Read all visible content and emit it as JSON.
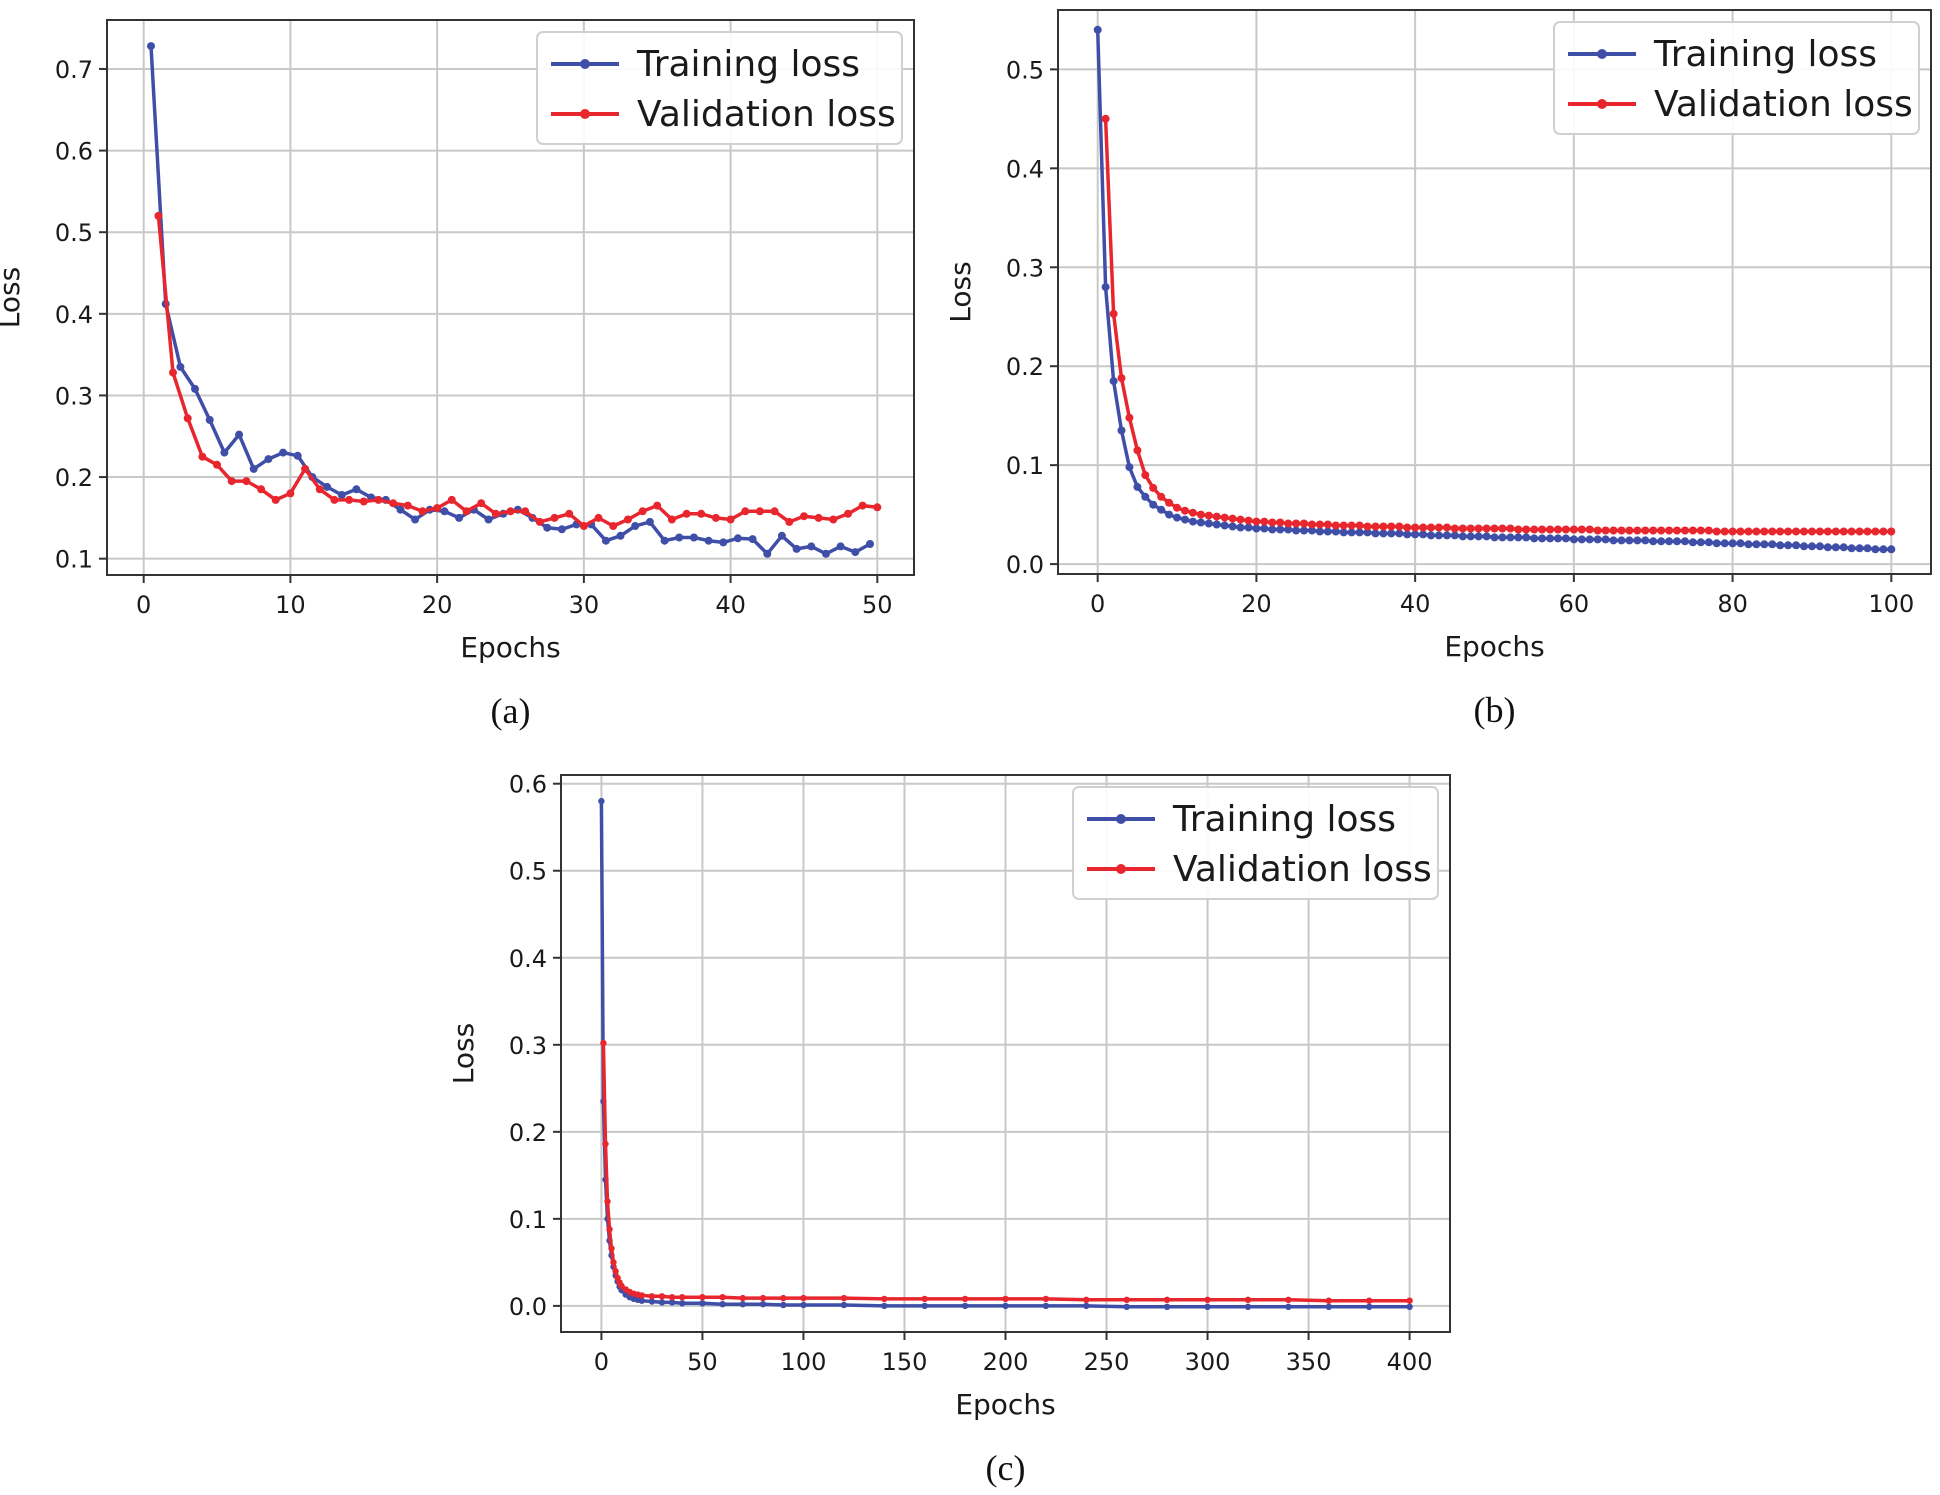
{
  "chart_data": [
    {
      "type": "line",
      "panel": "(a)",
      "xlabel": "Epochs",
      "ylabel": "Loss",
      "xlim": [
        -2.5,
        52.5
      ],
      "ylim": [
        0.08,
        0.76
      ],
      "xticks": [
        0,
        10,
        20,
        30,
        40,
        50
      ],
      "yticks": [
        0.1,
        0.2,
        0.3,
        0.4,
        0.5,
        0.6,
        0.7
      ],
      "legend_position": "top-right",
      "grid": true,
      "series": [
        {
          "name": "Training loss",
          "color": "#3f4fa8",
          "x": [
            0.5,
            1.5,
            2.5,
            3.5,
            4.5,
            5.5,
            6.5,
            7.5,
            8.5,
            9.5,
            10.5,
            11.5,
            12.5,
            13.5,
            14.5,
            15.5,
            16.5,
            17.5,
            18.5,
            19.5,
            20.5,
            21.5,
            22.5,
            23.5,
            24.5,
            25.5,
            26.5,
            27.5,
            28.5,
            29.5,
            30.5,
            31.5,
            32.5,
            33.5,
            34.5,
            35.5,
            36.5,
            37.5,
            38.5,
            39.5,
            40.5,
            41.5,
            42.5,
            43.5,
            44.5,
            45.5,
            46.5,
            47.5,
            48.5,
            49.5
          ],
          "y": [
            0.728,
            0.412,
            0.335,
            0.308,
            0.27,
            0.23,
            0.252,
            0.21,
            0.222,
            0.23,
            0.226,
            0.2,
            0.188,
            0.178,
            0.185,
            0.175,
            0.172,
            0.16,
            0.148,
            0.16,
            0.158,
            0.15,
            0.16,
            0.148,
            0.155,
            0.16,
            0.15,
            0.138,
            0.136,
            0.142,
            0.142,
            0.122,
            0.128,
            0.14,
            0.145,
            0.122,
            0.126,
            0.126,
            0.122,
            0.12,
            0.125,
            0.124,
            0.106,
            0.128,
            0.112,
            0.115,
            0.106,
            0.115,
            0.108,
            0.118
          ]
        },
        {
          "name": "Validation loss",
          "color": "#e8262e",
          "x": [
            1.0,
            2.0,
            3.0,
            4.0,
            5.0,
            6.0,
            7.0,
            8.0,
            9.0,
            10.0,
            11.0,
            12.0,
            13.0,
            14.0,
            15.0,
            16.0,
            17.0,
            18.0,
            19.0,
            20.0,
            21.0,
            22.0,
            23.0,
            24.0,
            25.0,
            26.0,
            27.0,
            28.0,
            29.0,
            30.0,
            31.0,
            32.0,
            33.0,
            34.0,
            35.0,
            36.0,
            37.0,
            38.0,
            39.0,
            40.0,
            41.0,
            42.0,
            43.0,
            44.0,
            45.0,
            46.0,
            47.0,
            48.0,
            49.0,
            50.0
          ],
          "y": [
            0.52,
            0.328,
            0.272,
            0.225,
            0.215,
            0.195,
            0.195,
            0.185,
            0.172,
            0.18,
            0.21,
            0.185,
            0.172,
            0.172,
            0.17,
            0.172,
            0.168,
            0.165,
            0.158,
            0.162,
            0.172,
            0.158,
            0.168,
            0.155,
            0.158,
            0.158,
            0.145,
            0.15,
            0.155,
            0.14,
            0.15,
            0.14,
            0.148,
            0.158,
            0.165,
            0.148,
            0.155,
            0.155,
            0.15,
            0.148,
            0.158,
            0.158,
            0.158,
            0.145,
            0.152,
            0.15,
            0.148,
            0.155,
            0.165,
            0.163
          ]
        }
      ]
    },
    {
      "type": "line",
      "panel": "(b)",
      "xlabel": "Epochs",
      "ylabel": "Loss",
      "xlim": [
        -5,
        105
      ],
      "ylim": [
        -0.01,
        0.56
      ],
      "xticks": [
        0,
        20,
        40,
        60,
        80,
        100
      ],
      "yticks": [
        0.0,
        0.1,
        0.2,
        0.3,
        0.4,
        0.5
      ],
      "legend_position": "top-right",
      "grid": true,
      "series": [
        {
          "name": "Training loss",
          "color": "#3f4fa8",
          "x": [
            0,
            1,
            2,
            3,
            4,
            5,
            6,
            7,
            8,
            9,
            10,
            11,
            12,
            13,
            14,
            15,
            16,
            17,
            18,
            19,
            20,
            21,
            22,
            23,
            24,
            25,
            26,
            27,
            28,
            29,
            30,
            31,
            32,
            33,
            34,
            35,
            36,
            37,
            38,
            39,
            40,
            41,
            42,
            43,
            44,
            45,
            46,
            47,
            48,
            49,
            50,
            51,
            52,
            53,
            54,
            55,
            56,
            57,
            58,
            59,
            60,
            61,
            62,
            63,
            64,
            65,
            66,
            67,
            68,
            69,
            70,
            71,
            72,
            73,
            74,
            75,
            76,
            77,
            78,
            79,
            80,
            81,
            82,
            83,
            84,
            85,
            86,
            87,
            88,
            89,
            90,
            91,
            92,
            93,
            94,
            95,
            96,
            97,
            98,
            99,
            100
          ],
          "y": [
            0.54,
            0.28,
            0.185,
            0.135,
            0.098,
            0.078,
            0.068,
            0.06,
            0.055,
            0.05,
            0.047,
            0.045,
            0.043,
            0.042,
            0.041,
            0.04,
            0.039,
            0.038,
            0.037,
            0.037,
            0.036,
            0.036,
            0.035,
            0.035,
            0.035,
            0.034,
            0.034,
            0.034,
            0.033,
            0.033,
            0.033,
            0.032,
            0.032,
            0.032,
            0.032,
            0.031,
            0.031,
            0.031,
            0.031,
            0.03,
            0.03,
            0.03,
            0.029,
            0.029,
            0.029,
            0.029,
            0.028,
            0.028,
            0.028,
            0.028,
            0.027,
            0.027,
            0.027,
            0.027,
            0.027,
            0.026,
            0.026,
            0.026,
            0.026,
            0.026,
            0.025,
            0.025,
            0.025,
            0.025,
            0.025,
            0.024,
            0.024,
            0.024,
            0.024,
            0.024,
            0.023,
            0.023,
            0.023,
            0.023,
            0.023,
            0.022,
            0.022,
            0.022,
            0.021,
            0.021,
            0.021,
            0.021,
            0.02,
            0.02,
            0.02,
            0.02,
            0.019,
            0.019,
            0.019,
            0.018,
            0.018,
            0.018,
            0.017,
            0.017,
            0.017,
            0.016,
            0.016,
            0.016,
            0.015,
            0.015,
            0.015
          ]
        },
        {
          "name": "Validation loss",
          "color": "#e8262e",
          "x": [
            1,
            2,
            3,
            4,
            5,
            6,
            7,
            8,
            9,
            10,
            11,
            12,
            13,
            14,
            15,
            16,
            17,
            18,
            19,
            20,
            21,
            22,
            23,
            24,
            25,
            26,
            27,
            28,
            29,
            30,
            31,
            32,
            33,
            34,
            35,
            36,
            37,
            38,
            39,
            40,
            41,
            42,
            43,
            44,
            45,
            46,
            47,
            48,
            49,
            50,
            51,
            52,
            53,
            54,
            55,
            56,
            57,
            58,
            59,
            60,
            61,
            62,
            63,
            64,
            65,
            66,
            67,
            68,
            69,
            70,
            71,
            72,
            73,
            74,
            75,
            76,
            77,
            78,
            79,
            80,
            81,
            82,
            83,
            84,
            85,
            86,
            87,
            88,
            89,
            90,
            91,
            92,
            93,
            94,
            95,
            96,
            97,
            98,
            99,
            100
          ],
          "y": [
            0.45,
            0.253,
            0.188,
            0.148,
            0.115,
            0.09,
            0.077,
            0.068,
            0.062,
            0.057,
            0.054,
            0.052,
            0.05,
            0.049,
            0.048,
            0.047,
            0.046,
            0.045,
            0.044,
            0.043,
            0.043,
            0.042,
            0.042,
            0.041,
            0.041,
            0.041,
            0.04,
            0.04,
            0.04,
            0.039,
            0.039,
            0.039,
            0.039,
            0.038,
            0.038,
            0.038,
            0.038,
            0.038,
            0.037,
            0.037,
            0.037,
            0.037,
            0.037,
            0.037,
            0.036,
            0.036,
            0.036,
            0.036,
            0.036,
            0.036,
            0.036,
            0.036,
            0.035,
            0.035,
            0.035,
            0.035,
            0.035,
            0.035,
            0.035,
            0.035,
            0.035,
            0.035,
            0.034,
            0.034,
            0.034,
            0.034,
            0.034,
            0.034,
            0.034,
            0.034,
            0.034,
            0.034,
            0.034,
            0.034,
            0.034,
            0.034,
            0.034,
            0.033,
            0.033,
            0.033,
            0.033,
            0.033,
            0.033,
            0.033,
            0.033,
            0.033,
            0.033,
            0.033,
            0.033,
            0.033,
            0.033,
            0.033,
            0.033,
            0.033,
            0.033,
            0.033,
            0.033,
            0.033,
            0.033,
            0.033
          ]
        }
      ]
    },
    {
      "type": "line",
      "panel": "(c)",
      "xlabel": "Epochs",
      "ylabel": "Loss",
      "xlim": [
        -20,
        420
      ],
      "ylim": [
        -0.03,
        0.61
      ],
      "xticks": [
        0,
        50,
        100,
        150,
        200,
        250,
        300,
        350,
        400
      ],
      "yticks": [
        0.0,
        0.1,
        0.2,
        0.3,
        0.4,
        0.5,
        0.6
      ],
      "legend_position": "top-right",
      "grid": true,
      "series": [
        {
          "name": "Training loss",
          "color": "#3f4fa8",
          "x": [
            0,
            1,
            2,
            3,
            4,
            5,
            6,
            7,
            8,
            9,
            10,
            12,
            14,
            16,
            18,
            20,
            25,
            30,
            35,
            40,
            50,
            60,
            70,
            80,
            90,
            100,
            120,
            140,
            160,
            180,
            200,
            220,
            240,
            260,
            280,
            300,
            320,
            340,
            360,
            380,
            400
          ],
          "y": [
            0.58,
            0.235,
            0.145,
            0.1,
            0.075,
            0.058,
            0.045,
            0.035,
            0.028,
            0.022,
            0.018,
            0.013,
            0.01,
            0.008,
            0.007,
            0.006,
            0.005,
            0.004,
            0.004,
            0.003,
            0.003,
            0.002,
            0.002,
            0.002,
            0.001,
            0.001,
            0.001,
            0.0,
            0.0,
            0.0,
            0.0,
            0.0,
            0.0,
            -0.001,
            -0.001,
            -0.001,
            -0.001,
            -0.001,
            -0.001,
            -0.001,
            -0.001
          ]
        },
        {
          "name": "Validation loss",
          "color": "#e8262e",
          "x": [
            1,
            2,
            3,
            4,
            5,
            6,
            7,
            8,
            9,
            10,
            12,
            14,
            16,
            18,
            20,
            25,
            30,
            35,
            40,
            50,
            60,
            70,
            80,
            90,
            100,
            120,
            140,
            160,
            180,
            200,
            220,
            240,
            260,
            280,
            300,
            320,
            340,
            360,
            380,
            400
          ],
          "y": [
            0.302,
            0.186,
            0.12,
            0.088,
            0.066,
            0.05,
            0.04,
            0.032,
            0.027,
            0.023,
            0.019,
            0.016,
            0.014,
            0.013,
            0.012,
            0.011,
            0.011,
            0.01,
            0.01,
            0.01,
            0.01,
            0.009,
            0.009,
            0.009,
            0.009,
            0.009,
            0.008,
            0.008,
            0.008,
            0.008,
            0.008,
            0.007,
            0.007,
            0.007,
            0.007,
            0.007,
            0.007,
            0.006,
            0.006,
            0.006
          ]
        }
      ]
    }
  ]
}
